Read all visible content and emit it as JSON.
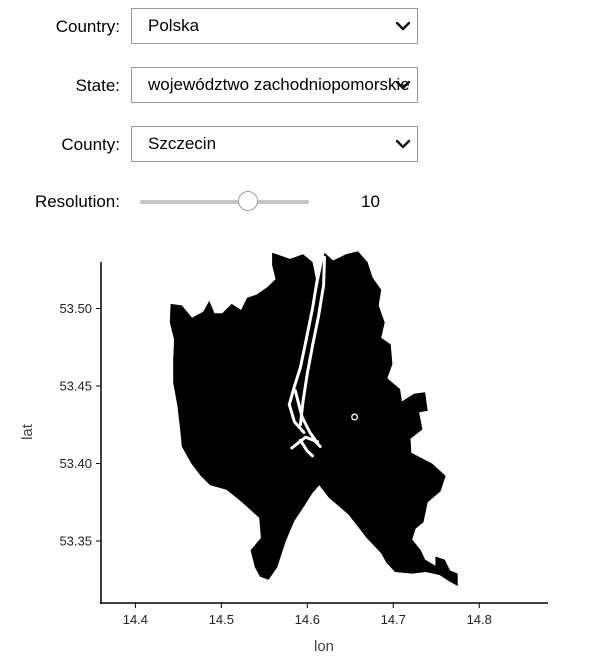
{
  "controls": {
    "country": {
      "label": "Country:",
      "value": "Polska"
    },
    "state": {
      "label": "State:",
      "value": "województwo zachodniopomorskie"
    },
    "county": {
      "label": "County:",
      "value": "Szczecin"
    },
    "resolution": {
      "label": "Resolution:",
      "value": "10",
      "slider_fraction": 0.64
    }
  },
  "chart_data": {
    "type": "map",
    "xlabel": "lon",
    "ylabel": "lat",
    "xticks": [
      "14.4",
      "14.5",
      "14.6",
      "14.7",
      "14.8"
    ],
    "yticks": [
      "53.35",
      "53.40",
      "53.45",
      "53.50"
    ],
    "xlim": [
      14.36,
      14.88
    ],
    "ylim": [
      53.31,
      53.53
    ],
    "region_color": "#000000",
    "marker": {
      "lon": 14.655,
      "lat": 53.43
    },
    "outline": [
      [
        14.559,
        53.536
      ],
      [
        14.58,
        53.532
      ],
      [
        14.595,
        53.535
      ],
      [
        14.606,
        53.53
      ],
      [
        14.612,
        53.514
      ],
      [
        14.62,
        53.536
      ],
      [
        14.63,
        53.531
      ],
      [
        14.645,
        53.535
      ],
      [
        14.659,
        53.537
      ],
      [
        14.67,
        53.53
      ],
      [
        14.676,
        53.52
      ],
      [
        14.686,
        53.512
      ],
      [
        14.683,
        53.502
      ],
      [
        14.69,
        53.491
      ],
      [
        14.686,
        53.481
      ],
      [
        14.697,
        53.477
      ],
      [
        14.699,
        53.464
      ],
      [
        14.693,
        53.455
      ],
      [
        14.708,
        53.448
      ],
      [
        14.71,
        53.44
      ],
      [
        14.724,
        53.445
      ],
      [
        14.737,
        53.446
      ],
      [
        14.74,
        53.434
      ],
      [
        14.73,
        53.433
      ],
      [
        14.734,
        53.422
      ],
      [
        14.72,
        53.416
      ],
      [
        14.721,
        53.407
      ],
      [
        14.745,
        53.4
      ],
      [
        14.761,
        53.392
      ],
      [
        14.755,
        53.382
      ],
      [
        14.74,
        53.375
      ],
      [
        14.735,
        53.362
      ],
      [
        14.726,
        53.358
      ],
      [
        14.722,
        53.351
      ],
      [
        14.732,
        53.344
      ],
      [
        14.737,
        53.338
      ],
      [
        14.749,
        53.334
      ],
      [
        14.749,
        53.34
      ],
      [
        14.76,
        53.338
      ],
      [
        14.766,
        53.331
      ],
      [
        14.775,
        53.329
      ],
      [
        14.775,
        53.321
      ],
      [
        14.765,
        53.324
      ],
      [
        14.754,
        53.328
      ],
      [
        14.738,
        53.33
      ],
      [
        14.722,
        53.329
      ],
      [
        14.702,
        53.33
      ],
      [
        14.692,
        53.336
      ],
      [
        14.686,
        53.342
      ],
      [
        14.669,
        53.352
      ],
      [
        14.648,
        53.367
      ],
      [
        14.625,
        53.378
      ],
      [
        14.614,
        53.386
      ],
      [
        14.606,
        53.381
      ],
      [
        14.597,
        53.373
      ],
      [
        14.585,
        53.363
      ],
      [
        14.575,
        53.35
      ],
      [
        14.565,
        53.333
      ],
      [
        14.555,
        53.325
      ],
      [
        14.545,
        53.327
      ],
      [
        14.539,
        53.333
      ],
      [
        14.534,
        53.344
      ],
      [
        14.546,
        53.352
      ],
      [
        14.544,
        53.365
      ],
      [
        14.524,
        53.375
      ],
      [
        14.506,
        53.383
      ],
      [
        14.487,
        53.386
      ],
      [
        14.476,
        53.392
      ],
      [
        14.465,
        53.4
      ],
      [
        14.454,
        53.411
      ],
      [
        14.452,
        53.422
      ],
      [
        14.449,
        53.437
      ],
      [
        14.444,
        53.452
      ],
      [
        14.444,
        53.467
      ],
      [
        14.445,
        53.48
      ],
      [
        14.44,
        53.491
      ],
      [
        14.441,
        53.503
      ],
      [
        14.454,
        53.502
      ],
      [
        14.466,
        53.494
      ],
      [
        14.479,
        53.498
      ],
      [
        14.486,
        53.505
      ],
      [
        14.492,
        53.497
      ],
      [
        14.501,
        53.497
      ],
      [
        14.512,
        53.503
      ],
      [
        14.523,
        53.499
      ],
      [
        14.53,
        53.507
      ],
      [
        14.541,
        53.509
      ],
      [
        14.554,
        53.514
      ],
      [
        14.563,
        53.519
      ],
      [
        14.559,
        53.528
      ]
    ],
    "rivers": [
      [
        [
          14.614,
          53.535
        ],
        [
          14.612,
          53.52
        ],
        [
          14.606,
          53.5
        ],
        [
          14.598,
          53.478
        ],
        [
          14.592,
          53.462
        ],
        [
          14.584,
          53.448
        ],
        [
          14.579,
          53.438
        ]
      ],
      [
        [
          14.62,
          53.533
        ],
        [
          14.619,
          53.515
        ],
        [
          14.613,
          53.495
        ],
        [
          14.606,
          53.476
        ],
        [
          14.6,
          53.458
        ],
        [
          14.595,
          53.44
        ],
        [
          14.592,
          53.425
        ]
      ],
      [
        [
          14.586,
          53.447
        ],
        [
          14.594,
          53.43
        ],
        [
          14.603,
          53.42
        ],
        [
          14.612,
          53.413
        ]
      ],
      [
        [
          14.579,
          53.438
        ],
        [
          14.585,
          53.427
        ],
        [
          14.596,
          53.42
        ]
      ],
      [
        [
          14.582,
          53.41
        ],
        [
          14.598,
          53.417
        ],
        [
          14.612,
          53.414
        ]
      ],
      [
        [
          14.592,
          53.415
        ],
        [
          14.6,
          53.408
        ],
        [
          14.606,
          53.405
        ]
      ],
      [
        [
          14.606,
          53.416
        ],
        [
          14.615,
          53.411
        ]
      ]
    ]
  }
}
